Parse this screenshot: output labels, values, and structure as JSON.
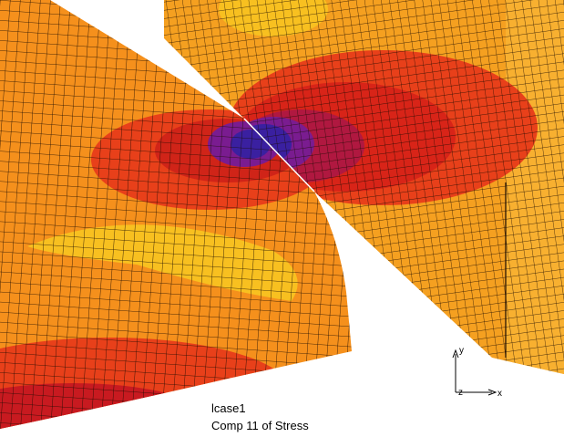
{
  "caption": {
    "line1": "lcase1",
    "line2": "Comp 11 of Stress"
  },
  "triad": {
    "y": "y",
    "x": "x",
    "z": "z"
  }
}
